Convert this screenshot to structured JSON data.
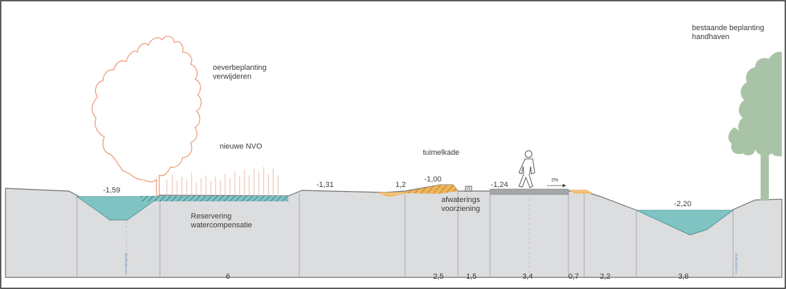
{
  "labels": {
    "remove_planting": [
      "oeverbeplanting",
      "verwijderen"
    ],
    "new_nvo": "nieuwe NVO",
    "reservation": [
      "Reservering",
      "watercompensatie"
    ],
    "tuimelkade": "tuimelkade",
    "drainage": [
      "afwaterings",
      "voorziening"
    ],
    "keep_planting": [
      "bestaande beplanting",
      "handhaven"
    ],
    "slope": "2%",
    "axis_left": "as watergang",
    "axis_right": "as watergang"
  },
  "levels": {
    "ditch_left": "-1,59",
    "field_mid": "-1,31",
    "kade_side": "1,2",
    "kade_top": "-1,00",
    "path": "-1,24",
    "ditch_right": "-2,20"
  },
  "dimensions": [
    "6",
    "2,5",
    "1,5",
    "3,4",
    "0,7",
    "2,2",
    "3,6"
  ],
  "colors": {
    "ground": "#dcdddf",
    "ground_line": "#6e6e6e",
    "water": "#7fc3c3",
    "hatch": "#2a5f75",
    "sand": "#f0b457",
    "tree_outline": "#ee8a63",
    "tree_kept": "#a9c3a7",
    "path": "#a6a7aa",
    "reed": "#e8b9a4"
  }
}
